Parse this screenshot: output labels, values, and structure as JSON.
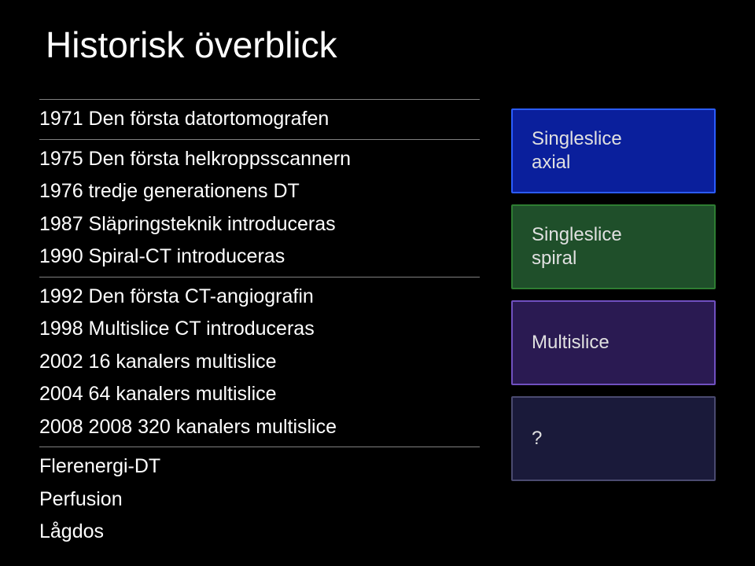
{
  "title": "Historisk överblick",
  "timeline": [
    "1971 Den första datortomografen",
    "1975 Den första helkroppsscannern",
    "1976 tredje generationens DT",
    "1987 Släpringsteknik introduceras",
    "1990 Spiral-CT introduceras",
    "1992 Den första CT-angiografin",
    "1998 Multislice CT introduceras",
    "2002 16 kanalers multislice",
    "2004 64 kanalers multislice",
    "2008 2008 320 kanalers multislice",
    "Flerenergi-DT",
    "Perfusion",
    "Lågdos"
  ],
  "rules_after": [
    0,
    4,
    9
  ],
  "boxes": [
    {
      "label": "Singleslice\naxial",
      "class": "box-blue"
    },
    {
      "label": "Singleslice\nspiral",
      "class": "box-green"
    },
    {
      "label": "Multislice",
      "class": "box-purple"
    },
    {
      "label": "?",
      "class": "box-dark"
    }
  ],
  "colors": {
    "background": "#000000",
    "text": "#ffffff",
    "rule": "#808080"
  }
}
